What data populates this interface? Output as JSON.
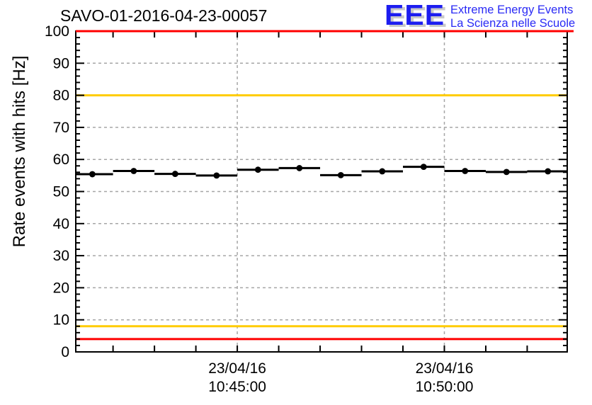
{
  "logo": {
    "acronym": "EEE",
    "tagline_en": "Extreme Energy Events",
    "tagline_it": "La Scienza nelle Scuole",
    "text_color": "#2a2af5"
  },
  "chart_data": {
    "type": "scatter",
    "title": "SAVO-01-2016-04-23-00057",
    "xlabel": "",
    "ylabel": "Rate events with hits [Hz]",
    "ylim": [
      0,
      100
    ],
    "y_major_tick_step": 10,
    "y_minor_tick_step": 2,
    "grid": {
      "horizontal": "dashed gray line at every major y tick",
      "vertical": "dashed gray line at each labeled time tick",
      "color": "#a6a6a6"
    },
    "x_axis": {
      "start": "10:41:06",
      "end": "10:52:58",
      "minor_tick_interval_s": 60,
      "labeled_ticks": [
        {
          "date": "23/04/16",
          "time": "10:45:00"
        },
        {
          "date": "23/04/16",
          "time": "10:50:00"
        }
      ]
    },
    "series": [
      {
        "name": "rate events with hits",
        "marker": "filled-circle",
        "color": "#000000",
        "bin_width_s": 60,
        "points": [
          {
            "t": "10:41:30",
            "hz": 55.4
          },
          {
            "t": "10:42:30",
            "hz": 56.4
          },
          {
            "t": "10:43:30",
            "hz": 55.5
          },
          {
            "t": "10:44:30",
            "hz": 55.0
          },
          {
            "t": "10:45:30",
            "hz": 56.8
          },
          {
            "t": "10:46:30",
            "hz": 57.3
          },
          {
            "t": "10:47:30",
            "hz": 55.1
          },
          {
            "t": "10:48:30",
            "hz": 56.3
          },
          {
            "t": "10:49:30",
            "hz": 57.7
          },
          {
            "t": "10:50:30",
            "hz": 56.4
          },
          {
            "t": "10:51:30",
            "hz": 56.1
          },
          {
            "t": "10:52:30",
            "hz": 56.3
          }
        ]
      }
    ],
    "threshold_lines": [
      {
        "value": 100,
        "color": "#ff0000",
        "extends_right": true
      },
      {
        "value": 80,
        "color": "#ffcc00",
        "extends_right": false
      },
      {
        "value": 8,
        "color": "#ffcc00",
        "extends_right": false
      },
      {
        "value": 4,
        "color": "#ff0000",
        "extends_right": false
      }
    ],
    "legend": "none"
  }
}
